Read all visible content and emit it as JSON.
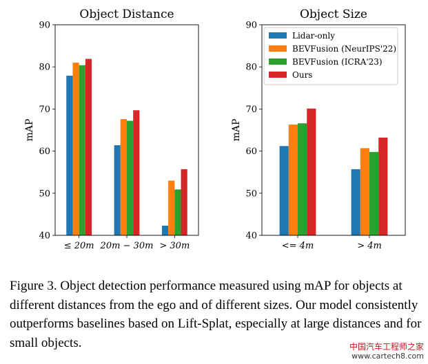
{
  "chart_data": [
    {
      "type": "bar",
      "title": "Object Distance",
      "ylabel": "mAP",
      "xlabel": "",
      "ylim": [
        40,
        90
      ],
      "yticks": [
        "40",
        "50",
        "60",
        "70",
        "80",
        "90"
      ],
      "categories": [
        "≤ 20m",
        "20m − 30m",
        "> 30m"
      ],
      "series": [
        {
          "name": "Lidar-only",
          "color": "#1f77b4",
          "values": [
            77.9,
            61.4,
            42.3
          ]
        },
        {
          "name": "BEVFusion (NeurIPS'22)",
          "color": "#ff7f0e",
          "values": [
            81.0,
            67.6,
            53.0
          ]
        },
        {
          "name": "BEVFusion (ICRA'23)",
          "color": "#2ca02c",
          "values": [
            80.4,
            67.2,
            50.9
          ]
        },
        {
          "name": "Ours",
          "color": "#d62728",
          "values": [
            81.9,
            69.7,
            55.7
          ]
        }
      ]
    },
    {
      "type": "bar",
      "title": "Object Size",
      "ylabel": "mAP",
      "xlabel": "",
      "ylim": [
        40,
        90
      ],
      "yticks": [
        "40",
        "50",
        "60",
        "70",
        "80",
        "90"
      ],
      "categories": [
        "<= 4m",
        "> 4m"
      ],
      "legend_position": "top-right",
      "series": [
        {
          "name": "Lidar-only",
          "color": "#1f77b4",
          "values": [
            61.2,
            55.7
          ]
        },
        {
          "name": "BEVFusion (NeurIPS'22)",
          "color": "#ff7f0e",
          "values": [
            66.3,
            60.7
          ]
        },
        {
          "name": "BEVFusion (ICRA'23)",
          "color": "#2ca02c",
          "values": [
            66.6,
            59.8
          ]
        },
        {
          "name": "Ours",
          "color": "#d62728",
          "values": [
            70.1,
            63.2
          ]
        }
      ]
    }
  ],
  "caption": "Figure 3.  Object detection performance measured using mAP for objects at different distances from the ego and of different sizes. Our model consistently outperforms baselines based on Lift-Splat, especially at large distances and for small objects.",
  "watermark": {
    "line1": "中国汽车工程师之家",
    "line2": "www.cartech8.com"
  }
}
